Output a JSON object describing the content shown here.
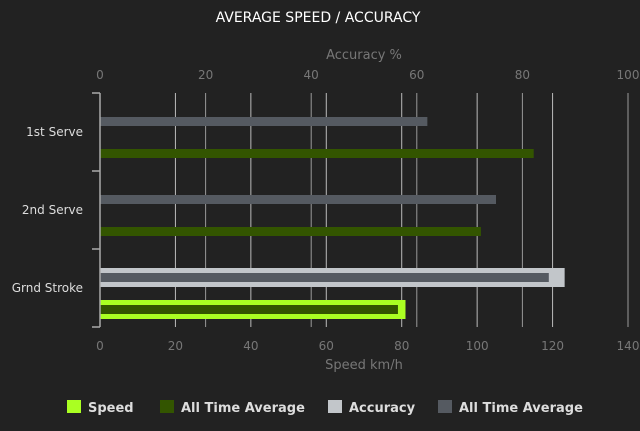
{
  "chart_data": {
    "type": "bar",
    "orientation": "horizontal",
    "title": "AVERAGE SPEED / ACCURACY",
    "categories": [
      "1st Serve",
      "2nd Serve",
      "Grnd Stroke"
    ],
    "x_bottom": {
      "label": "Speed km/h",
      "range": [
        0,
        140
      ],
      "ticks": [
        0,
        20,
        40,
        60,
        80,
        100,
        120,
        140
      ]
    },
    "x_top": {
      "label": "Accuracy %",
      "range": [
        0,
        100
      ],
      "ticks": [
        0,
        20,
        40,
        60,
        80,
        100
      ]
    },
    "grid": true,
    "legend_position": "bottom",
    "series": [
      {
        "name": "Speed",
        "axis": "speed",
        "color": "#aaff22",
        "values": [
          null,
          null,
          81
        ]
      },
      {
        "name": "All Time Average",
        "axis": "speed",
        "color": "#335500",
        "values": [
          115,
          101,
          79
        ]
      },
      {
        "name": "Accuracy",
        "axis": "accuracy",
        "color": "#c2c6ca",
        "values": [
          null,
          null,
          88
        ]
      },
      {
        "name": "All Time Average",
        "axis": "accuracy",
        "color": "#555a61",
        "values": [
          62,
          75,
          85
        ]
      }
    ]
  }
}
